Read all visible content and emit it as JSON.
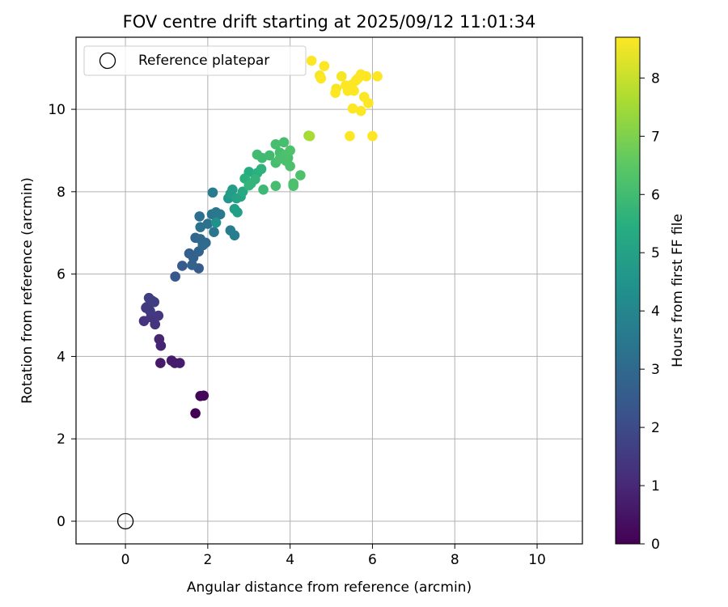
{
  "chart_data": {
    "type": "scatter",
    "title": "FOV centre drift starting at 2025/09/12 11:01:34",
    "xlabel": "Angular distance from reference (arcmin)",
    "ylabel": "Rotation from reference (arcmin)",
    "xlim": [
      -1.2,
      11.1
    ],
    "ylim": [
      -0.55,
      11.75
    ],
    "xticks": [
      0,
      2,
      4,
      6,
      8,
      10
    ],
    "yticks": [
      0,
      2,
      4,
      6,
      8,
      10
    ],
    "grid": true,
    "legend": {
      "position": "top-left",
      "entries": [
        "Reference platepar"
      ]
    },
    "reference_point": {
      "label": "Reference platepar",
      "x": 0,
      "y": 0
    },
    "colorbar": {
      "label": "Hours from first FF file",
      "colormap": "viridis",
      "range": [
        0,
        8.7
      ],
      "ticks": [
        0,
        1,
        2,
        3,
        4,
        5,
        6,
        7,
        8
      ]
    },
    "points": [
      [
        1.7,
        2.62,
        0.0
      ],
      [
        1.82,
        3.04,
        0.1
      ],
      [
        1.9,
        3.05,
        0.15
      ],
      [
        0.85,
        3.84,
        0.6
      ],
      [
        1.12,
        3.9,
        0.65
      ],
      [
        1.2,
        3.84,
        0.7
      ],
      [
        1.32,
        3.84,
        0.7
      ],
      [
        0.82,
        4.42,
        0.9
      ],
      [
        0.86,
        4.26,
        0.9
      ],
      [
        0.45,
        4.86,
        1.3
      ],
      [
        0.72,
        4.78,
        1.35
      ],
      [
        0.8,
        4.99,
        1.4
      ],
      [
        0.62,
        4.95,
        1.35
      ],
      [
        0.5,
        5.18,
        1.45
      ],
      [
        0.6,
        5.1,
        1.5
      ],
      [
        0.7,
        5.32,
        1.55
      ],
      [
        0.57,
        5.42,
        1.6
      ],
      [
        0.65,
        5.35,
        1.6
      ],
      [
        0.52,
        5.2,
        1.5
      ],
      [
        1.21,
        5.94,
        2.4
      ],
      [
        1.38,
        6.2,
        2.5
      ],
      [
        1.78,
        6.14,
        2.5
      ],
      [
        1.55,
        6.5,
        2.7
      ],
      [
        1.65,
        6.4,
        2.7
      ],
      [
        1.62,
        6.22,
        2.75
      ],
      [
        1.78,
        6.55,
        2.8
      ],
      [
        1.7,
        6.88,
        2.9
      ],
      [
        1.82,
        6.85,
        3.0
      ],
      [
        1.95,
        6.76,
        3.0
      ],
      [
        1.88,
        6.7,
        3.05
      ],
      [
        1.8,
        7.4,
        3.2
      ],
      [
        1.82,
        7.14,
        3.3
      ],
      [
        2.0,
        7.22,
        3.3
      ],
      [
        2.15,
        7.02,
        3.4
      ],
      [
        2.1,
        7.45,
        3.4
      ],
      [
        2.2,
        7.5,
        3.5
      ],
      [
        2.3,
        7.45,
        3.5
      ],
      [
        2.12,
        7.98,
        3.6
      ],
      [
        2.55,
        7.06,
        3.6
      ],
      [
        2.65,
        6.94,
        3.7
      ],
      [
        2.2,
        7.25,
        4.4
      ],
      [
        2.5,
        7.84,
        4.6
      ],
      [
        2.6,
        8.05,
        4.8
      ],
      [
        2.55,
        7.95,
        4.8
      ],
      [
        2.72,
        7.5,
        4.9
      ],
      [
        2.65,
        7.58,
        4.9
      ],
      [
        2.8,
        7.88,
        5.1
      ],
      [
        2.7,
        7.84,
        5.0
      ],
      [
        2.85,
        8.0,
        5.3
      ],
      [
        3.0,
        8.48,
        5.4
      ],
      [
        2.9,
        8.32,
        5.5
      ],
      [
        3.2,
        8.45,
        5.5
      ],
      [
        3.05,
        8.2,
        5.6
      ],
      [
        3.3,
        8.55,
        5.6
      ],
      [
        3.15,
        8.3,
        5.7
      ],
      [
        3.0,
        8.15,
        5.7
      ],
      [
        3.35,
        8.05,
        5.9
      ],
      [
        3.2,
        8.9,
        6.0
      ],
      [
        3.32,
        8.82,
        5.95
      ],
      [
        3.5,
        8.88,
        6.0
      ],
      [
        3.65,
        9.15,
        6.1
      ],
      [
        3.75,
        8.95,
        6.1
      ],
      [
        3.85,
        9.2,
        6.1
      ],
      [
        3.9,
        8.9,
        6.2
      ],
      [
        3.95,
        8.82,
        6.1
      ],
      [
        3.65,
        8.7,
        6.1
      ],
      [
        3.75,
        8.8,
        6.15
      ],
      [
        3.9,
        8.75,
        6.15
      ],
      [
        4.0,
        8.62,
        6.2
      ],
      [
        4.08,
        8.14,
        6.2
      ],
      [
        4.08,
        8.2,
        6.2
      ],
      [
        4.25,
        8.4,
        6.25
      ],
      [
        3.65,
        8.14,
        6.1
      ],
      [
        4.0,
        9.0,
        6.25
      ],
      [
        4.48,
        9.35,
        7.6
      ],
      [
        4.45,
        9.36,
        7.4
      ],
      [
        4.52,
        11.18,
        8.7
      ],
      [
        4.83,
        11.05,
        8.7
      ],
      [
        4.72,
        10.82,
        8.6
      ],
      [
        4.75,
        10.75,
        8.7
      ],
      [
        5.1,
        10.4,
        8.7
      ],
      [
        5.12,
        10.5,
        8.6
      ],
      [
        5.25,
        10.8,
        8.6
      ],
      [
        5.35,
        10.58,
        8.7
      ],
      [
        5.4,
        10.45,
        8.7
      ],
      [
        5.5,
        10.6,
        8.7
      ],
      [
        5.55,
        10.45,
        8.7
      ],
      [
        5.65,
        10.75,
        8.7
      ],
      [
        5.72,
        10.85,
        8.7
      ],
      [
        5.8,
        10.3,
        8.7
      ],
      [
        5.85,
        10.8,
        8.7
      ],
      [
        5.9,
        10.15,
        8.7
      ],
      [
        5.52,
        10.02,
        8.7
      ],
      [
        5.72,
        9.96,
        8.7
      ],
      [
        5.45,
        9.35,
        8.7
      ],
      [
        6.0,
        9.35,
        8.7
      ],
      [
        6.12,
        10.8,
        8.7
      ],
      [
        5.6,
        10.7,
        8.7
      ]
    ]
  }
}
